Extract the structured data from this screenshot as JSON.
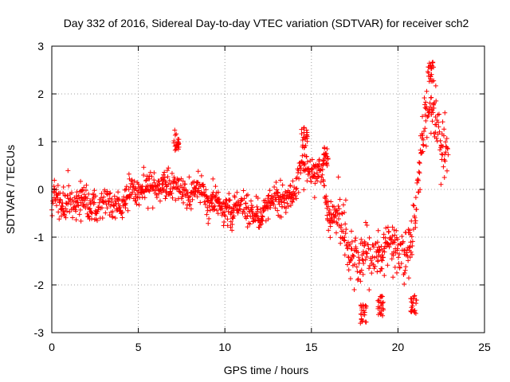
{
  "chart_data": {
    "type": "scatter",
    "marker": "+",
    "title": "Day 332 of 2016, Sidereal Day-to-day VTEC variation (SDTVAR) for receiver sch2",
    "xlabel": "GPS time / hours",
    "ylabel": "SDTVAR / TECUs",
    "xlim": [
      0,
      25
    ],
    "ylim": [
      -3,
      3
    ],
    "x_ticks": [
      0,
      5,
      10,
      15,
      20,
      25
    ],
    "y_ticks": [
      -3,
      -2,
      -1,
      0,
      1,
      2,
      3
    ],
    "grid": true,
    "series": [
      {
        "name": "SDTVAR",
        "color": "#ff0000",
        "profile": [
          {
            "x": 0.0,
            "y": -0.3
          },
          {
            "x": 0.2,
            "y": 0.0
          },
          {
            "x": 0.5,
            "y": -0.4
          },
          {
            "x": 1.0,
            "y": -0.2
          },
          {
            "x": 1.5,
            "y": -0.3
          },
          {
            "x": 2.0,
            "y": -0.2
          },
          {
            "x": 2.5,
            "y": -0.5
          },
          {
            "x": 3.0,
            "y": -0.2
          },
          {
            "x": 3.5,
            "y": -0.3
          },
          {
            "x": 4.0,
            "y": -0.4
          },
          {
            "x": 4.5,
            "y": 0.0
          },
          {
            "x": 5.0,
            "y": -0.1
          },
          {
            "x": 5.5,
            "y": 0.1
          },
          {
            "x": 6.0,
            "y": 0.0
          },
          {
            "x": 6.5,
            "y": 0.2
          },
          {
            "x": 7.0,
            "y": 0.0
          },
          {
            "x": 7.5,
            "y": 0.1
          },
          {
            "x": 8.0,
            "y": -0.2
          },
          {
            "x": 8.5,
            "y": 0.1
          },
          {
            "x": 9.0,
            "y": -0.3
          },
          {
            "x": 9.5,
            "y": -0.2
          },
          {
            "x": 10.0,
            "y": -0.5
          },
          {
            "x": 10.5,
            "y": -0.4
          },
          {
            "x": 11.0,
            "y": -0.3
          },
          {
            "x": 11.5,
            "y": -0.5
          },
          {
            "x": 12.0,
            "y": -0.6
          },
          {
            "x": 12.5,
            "y": -0.3
          },
          {
            "x": 13.0,
            "y": -0.2
          },
          {
            "x": 13.5,
            "y": -0.3
          },
          {
            "x": 14.0,
            "y": 0.0
          },
          {
            "x": 14.5,
            "y": 0.6
          },
          {
            "x": 15.0,
            "y": 0.3
          },
          {
            "x": 15.5,
            "y": 0.5
          },
          {
            "x": 16.0,
            "y": -0.6
          },
          {
            "x": 16.5,
            "y": -0.5
          },
          {
            "x": 17.0,
            "y": -1.0
          },
          {
            "x": 17.5,
            "y": -1.5
          },
          {
            "x": 18.0,
            "y": -1.4
          },
          {
            "x": 18.5,
            "y": -1.3
          },
          {
            "x": 19.0,
            "y": -1.5
          },
          {
            "x": 19.5,
            "y": -1.1
          },
          {
            "x": 20.0,
            "y": -1.2
          },
          {
            "x": 20.5,
            "y": -1.4
          },
          {
            "x": 21.0,
            "y": -0.6
          },
          {
            "x": 21.5,
            "y": 1.6
          },
          {
            "x": 22.0,
            "y": 1.8
          },
          {
            "x": 22.5,
            "y": 1.0
          },
          {
            "x": 22.9,
            "y": 0.6
          }
        ],
        "features": [
          {
            "x": 7.2,
            "y": 1.25,
            "note": "isolated spike"
          },
          {
            "x": 14.6,
            "y": 1.3,
            "note": "local peak"
          },
          {
            "x": 15.8,
            "y": 0.9,
            "note": "local peak"
          },
          {
            "x": 18.0,
            "y": -2.4,
            "note": "minimum"
          },
          {
            "x": 19.0,
            "y": -2.2,
            "note": "dip"
          },
          {
            "x": 20.9,
            "y": -2.2,
            "note": "dip"
          },
          {
            "x": 21.9,
            "y": 2.7,
            "note": "global maximum"
          }
        ]
      }
    ]
  }
}
